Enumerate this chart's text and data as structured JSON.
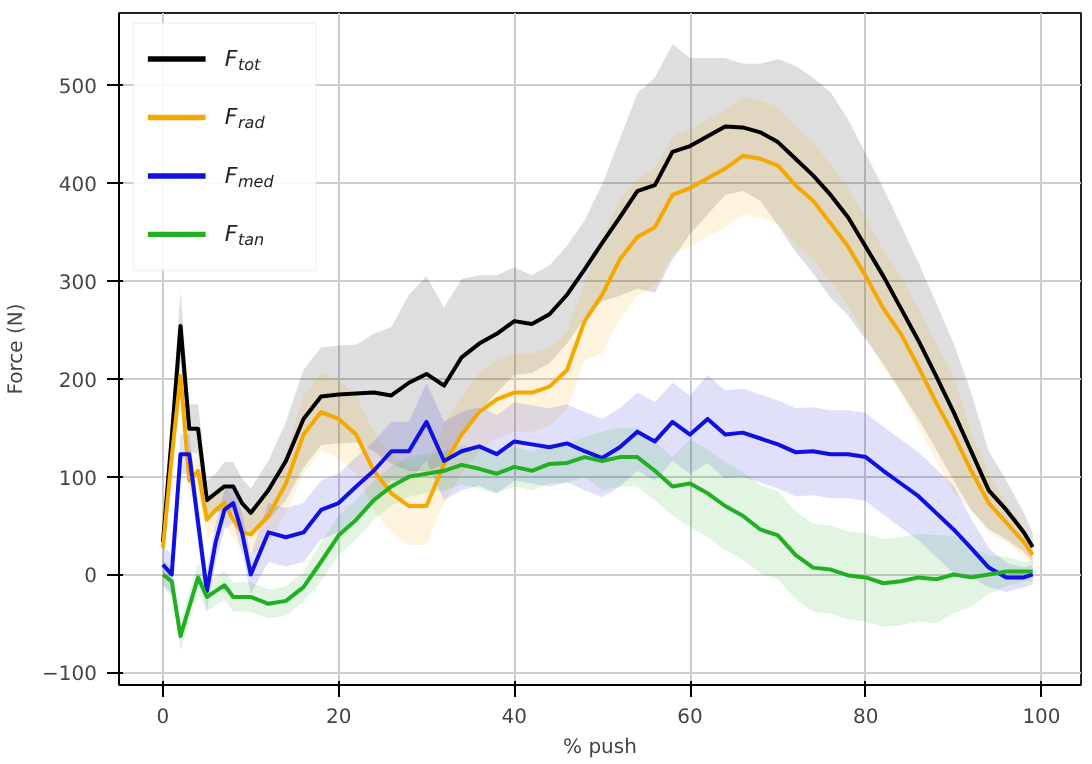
{
  "chart_data": {
    "type": "line",
    "xlabel": "% push",
    "ylabel": "Force (N)",
    "xlim": [
      -5,
      104.5
    ],
    "ylim": [
      -113,
      574
    ],
    "xticks": [
      0,
      20,
      40,
      60,
      80,
      100
    ],
    "yticks": [
      -100,
      0,
      100,
      200,
      300,
      400,
      500
    ],
    "grid": true,
    "legend": "top left",
    "line_style": "solid",
    "marker": "none",
    "x": [
      0,
      1,
      2,
      3,
      4,
      5,
      6,
      7,
      8,
      9,
      10,
      12,
      14,
      16,
      18,
      20,
      22,
      24,
      26,
      28,
      30,
      32,
      34,
      36,
      38,
      40,
      42,
      44,
      46,
      48,
      50,
      52,
      54,
      56,
      58,
      60,
      62,
      64,
      66,
      68,
      70,
      72,
      74,
      76,
      78,
      80,
      82,
      84,
      86,
      88,
      90,
      92,
      94,
      96,
      98,
      99
    ],
    "series": [
      {
        "name": "F$_{tot}$",
        "color": "#000000",
        "values": [
          33,
          140,
          254,
          149,
          149,
          76,
          83,
          90,
          90,
          73,
          63,
          86,
          116,
          159,
          182,
          184,
          185,
          186,
          183,
          196,
          205,
          193,
          222,
          236,
          246,
          259,
          256,
          266,
          286,
          312,
          339,
          365,
          392,
          398,
          432,
          438,
          448,
          458,
          457,
          452,
          442,
          425,
          408,
          388,
          365,
          335,
          305,
          272,
          239,
          203,
          166,
          126,
          86,
          66,
          43,
          28
        ],
        "lower": [
          18,
          115,
          219,
          124,
          124,
          56,
          63,
          65,
          65,
          48,
          38,
          56,
          76,
          109,
          132,
          134,
          135,
          126,
          113,
          106,
          105,
          113,
          142,
          166,
          186,
          204,
          206,
          216,
          236,
          262,
          279,
          285,
          292,
          288,
          322,
          348,
          368,
          388,
          392,
          382,
          357,
          330,
          308,
          283,
          265,
          240,
          215,
          187,
          159,
          128,
          96,
          66,
          46,
          36,
          23,
          13
        ],
        "upper": [
          48,
          165,
          289,
          174,
          174,
          96,
          103,
          115,
          115,
          98,
          88,
          116,
          156,
          209,
          232,
          234,
          235,
          246,
          253,
          286,
          305,
          273,
          302,
          306,
          306,
          314,
          306,
          316,
          336,
          362,
          399,
          445,
          492,
          508,
          542,
          528,
          528,
          528,
          522,
          522,
          527,
          520,
          508,
          493,
          465,
          430,
          395,
          357,
          319,
          278,
          236,
          186,
          126,
          96,
          63,
          43
        ]
      },
      {
        "name": "F$_{rad}$",
        "color": "#f5a800",
        "values": [
          27,
          120,
          203,
          96,
          106,
          56,
          66,
          73,
          56,
          43,
          41,
          60,
          93,
          143,
          166,
          159,
          143,
          106,
          83,
          70,
          70,
          113,
          143,
          166,
          179,
          186,
          186,
          192,
          209,
          259,
          286,
          322,
          345,
          355,
          388,
          395,
          405,
          415,
          428,
          425,
          418,
          398,
          382,
          359,
          335,
          305,
          272,
          246,
          212,
          176,
          143,
          106,
          73,
          53,
          33,
          20
        ],
        "lower": [
          7,
          100,
          183,
          76,
          86,
          36,
          46,
          53,
          36,
          23,
          21,
          30,
          63,
          103,
          126,
          119,
          103,
          66,
          43,
          30,
          30,
          73,
          103,
          126,
          139,
          146,
          146,
          152,
          169,
          219,
          226,
          262,
          285,
          295,
          328,
          335,
          345,
          355,
          368,
          365,
          358,
          338,
          322,
          299,
          275,
          245,
          212,
          186,
          152,
          116,
          83,
          66,
          43,
          33,
          18,
          10
        ],
        "upper": [
          47,
          140,
          223,
          116,
          126,
          76,
          86,
          93,
          76,
          63,
          61,
          90,
          123,
          183,
          206,
          199,
          183,
          146,
          123,
          110,
          110,
          153,
          183,
          206,
          219,
          226,
          226,
          232,
          249,
          299,
          346,
          382,
          405,
          415,
          448,
          455,
          465,
          475,
          488,
          485,
          478,
          458,
          442,
          419,
          395,
          365,
          332,
          306,
          272,
          236,
          203,
          146,
          103,
          73,
          48,
          30
        ]
      },
      {
        "name": "F$_{med}$",
        "color": "#1010e0",
        "values": [
          10,
          0,
          123,
          123,
          53,
          -17,
          33,
          66,
          73,
          43,
          0,
          43,
          38,
          43,
          66,
          73,
          90,
          106,
          126,
          126,
          156,
          116,
          126,
          131,
          123,
          136,
          133,
          130,
          134,
          126,
          119,
          130,
          146,
          136,
          156,
          143,
          159,
          143,
          145,
          139,
          133,
          125,
          126,
          123,
          123,
          120,
          106,
          93,
          80,
          63,
          46,
          27,
          7,
          -3,
          -3,
          0
        ],
        "lower": [
          -10,
          -20,
          103,
          103,
          33,
          -37,
          13,
          46,
          53,
          23,
          -20,
          13,
          8,
          13,
          36,
          43,
          60,
          76,
          96,
          96,
          116,
          76,
          86,
          91,
          83,
          96,
          93,
          90,
          94,
          86,
          79,
          90,
          106,
          96,
          116,
          103,
          114,
          98,
          100,
          94,
          88,
          80,
          81,
          78,
          78,
          75,
          61,
          48,
          35,
          18,
          1,
          -3,
          -13,
          -18,
          -13,
          -10
        ],
        "upper": [
          30,
          20,
          143,
          143,
          73,
          3,
          53,
          86,
          93,
          63,
          20,
          73,
          68,
          73,
          96,
          103,
          120,
          136,
          156,
          156,
          196,
          156,
          166,
          171,
          163,
          176,
          173,
          170,
          174,
          166,
          159,
          170,
          186,
          176,
          196,
          183,
          204,
          188,
          190,
          184,
          178,
          170,
          171,
          168,
          168,
          165,
          151,
          138,
          125,
          108,
          91,
          57,
          27,
          12,
          7,
          10
        ]
      },
      {
        "name": "F$_{tan}$",
        "color": "#22b022",
        "values": [
          0,
          -7,
          -63,
          -33,
          -3,
          -23,
          -17,
          -11,
          -23,
          -23,
          -23,
          -30,
          -27,
          -13,
          13,
          40,
          56,
          76,
          90,
          100,
          103,
          106,
          112,
          108,
          103,
          110,
          106,
          113,
          114,
          120,
          116,
          120,
          120,
          106,
          90,
          93,
          83,
          70,
          60,
          46,
          40,
          20,
          7,
          5,
          -1,
          -3,
          -9,
          -7,
          -3,
          -5,
          0,
          -3,
          0,
          3,
          3,
          3
        ],
        "lower": [
          -15,
          -22,
          -78,
          -48,
          -18,
          -38,
          -32,
          -26,
          -38,
          -38,
          -38,
          -45,
          -42,
          -28,
          -7,
          20,
          36,
          56,
          70,
          80,
          83,
          86,
          92,
          88,
          83,
          90,
          86,
          93,
          94,
          100,
          86,
          90,
          90,
          76,
          60,
          48,
          38,
          25,
          15,
          1,
          -5,
          -25,
          -38,
          -40,
          -46,
          -48,
          -54,
          -52,
          -48,
          -50,
          -40,
          -33,
          -20,
          -12,
          -7,
          -7
        ],
        "upper": [
          15,
          8,
          -48,
          -18,
          12,
          -8,
          -2,
          4,
          -8,
          -8,
          -8,
          -15,
          -12,
          2,
          33,
          60,
          76,
          96,
          110,
          120,
          123,
          126,
          132,
          128,
          123,
          130,
          126,
          133,
          134,
          140,
          146,
          150,
          150,
          136,
          120,
          138,
          128,
          115,
          105,
          91,
          85,
          65,
          52,
          50,
          44,
          42,
          36,
          38,
          42,
          40,
          40,
          27,
          20,
          18,
          13,
          13
        ]
      }
    ]
  }
}
